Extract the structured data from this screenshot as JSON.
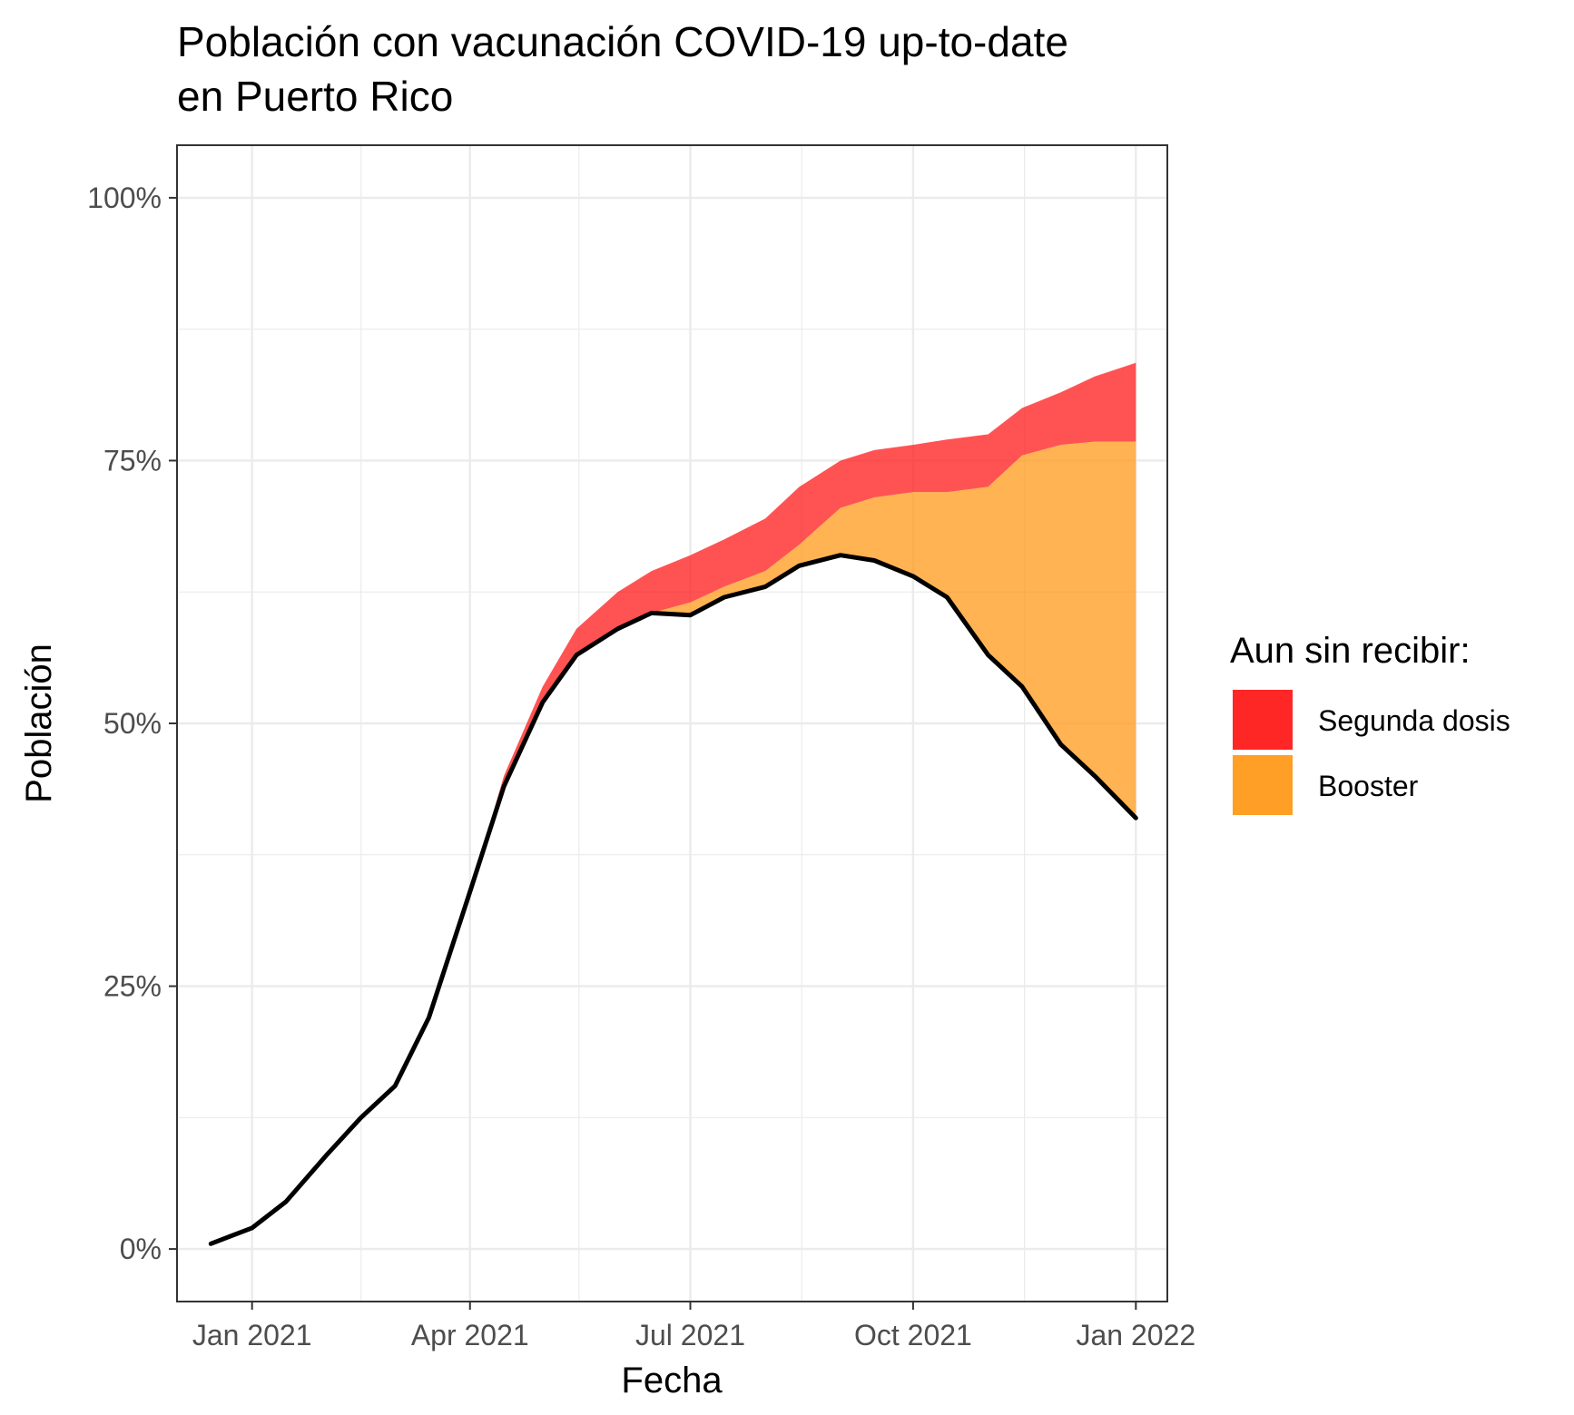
{
  "chart_data": {
    "type": "area",
    "title": [
      "Población con vacunación COVID-19 up-to-date",
      "en Puerto Rico"
    ],
    "xlabel": "Fecha",
    "ylabel": "Población",
    "xlim": [
      "2020-12-01",
      "2022-01-14"
    ],
    "ylim": [
      -0.05,
      1.05
    ],
    "x_ticks": [
      {
        "date": "2021-01-01",
        "label": "Jan 2021"
      },
      {
        "date": "2021-04-01",
        "label": "Apr 2021"
      },
      {
        "date": "2021-07-01",
        "label": "Jul 2021"
      },
      {
        "date": "2021-10-01",
        "label": "Oct 2021"
      },
      {
        "date": "2022-01-01",
        "label": "Jan 2022"
      }
    ],
    "x_minor_ticks": [
      "2021-02-15",
      "2021-05-16",
      "2021-08-16",
      "2021-11-16"
    ],
    "y_ticks": [
      {
        "value": 0,
        "label": "0%"
      },
      {
        "value": 0.25,
        "label": "25%"
      },
      {
        "value": 0.5,
        "label": "50%"
      },
      {
        "value": 0.75,
        "label": "75%"
      },
      {
        "value": 1.0,
        "label": "100%"
      }
    ],
    "y_minor_ticks": [
      0.125,
      0.375,
      0.625,
      0.875
    ],
    "grid": true,
    "legend": {
      "title": "Aun sin recibir:",
      "position": "right",
      "items": [
        {
          "label": "Segunda dosis",
          "color": "#ff1a1a"
        },
        {
          "label": "Booster",
          "color": "#ff9a1a"
        }
      ]
    },
    "x": [
      "2020-12-15",
      "2021-01-01",
      "2021-01-15",
      "2021-02-01",
      "2021-02-15",
      "2021-03-01",
      "2021-03-15",
      "2021-04-01",
      "2021-04-15",
      "2021-05-01",
      "2021-05-15",
      "2021-06-01",
      "2021-06-15",
      "2021-07-01",
      "2021-07-15",
      "2021-08-01",
      "2021-08-15",
      "2021-09-01",
      "2021-09-15",
      "2021-10-01",
      "2021-10-15",
      "2021-11-01",
      "2021-11-15",
      "2021-12-01",
      "2021-12-15",
      "2022-01-01"
    ],
    "series": [
      {
        "name": "Up-to-date",
        "color": "#000000",
        "values": [
          0.005,
          0.02,
          0.045,
          0.09,
          0.125,
          0.155,
          0.22,
          0.34,
          0.44,
          0.52,
          0.565,
          0.59,
          0.605,
          0.603,
          0.62,
          0.63,
          0.65,
          0.66,
          0.655,
          0.64,
          0.62,
          0.565,
          0.535,
          0.48,
          0.45,
          0.41
        ]
      },
      {
        "name": "Segunda dosis",
        "color": "#ff1a1a",
        "values": [
          0.005,
          0.02,
          0.045,
          0.09,
          0.125,
          0.155,
          0.22,
          0.34,
          0.45,
          0.535,
          0.59,
          0.625,
          0.645,
          0.66,
          0.675,
          0.695,
          0.725,
          0.75,
          0.76,
          0.765,
          0.77,
          0.775,
          0.8,
          0.815,
          0.83,
          0.843
        ]
      },
      {
        "name": "Booster",
        "color": "#ff9a1a",
        "values": [
          0.005,
          0.02,
          0.045,
          0.09,
          0.125,
          0.155,
          0.22,
          0.34,
          0.44,
          0.52,
          0.565,
          0.59,
          0.605,
          0.615,
          0.63,
          0.645,
          0.67,
          0.705,
          0.715,
          0.72,
          0.72,
          0.725,
          0.755,
          0.765,
          0.768,
          0.768
        ]
      }
    ]
  }
}
